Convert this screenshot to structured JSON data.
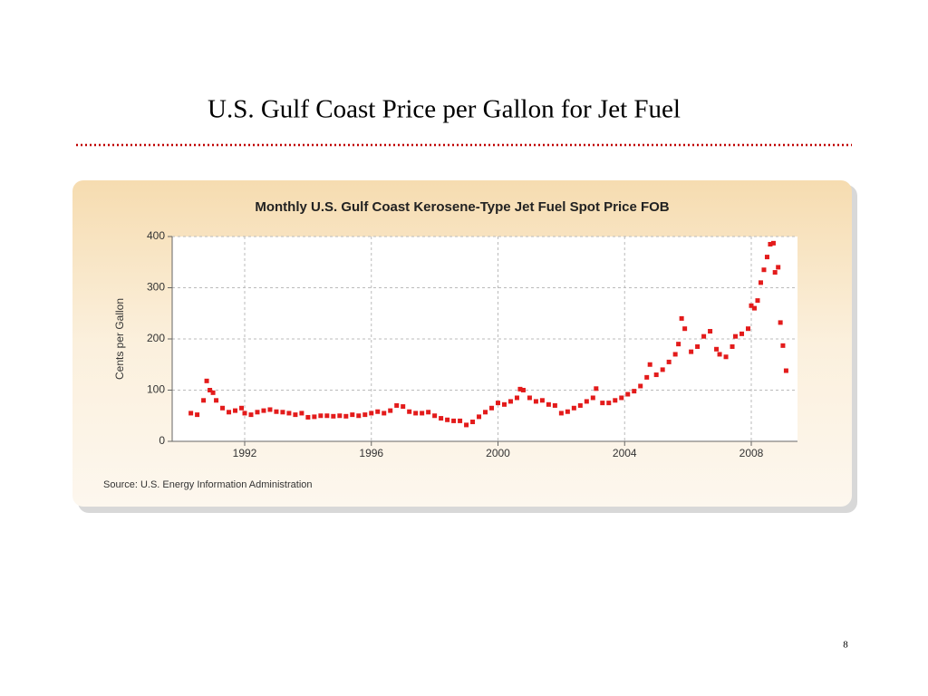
{
  "slide": {
    "title": "U.S. Gulf Coast Price per Gallon for Jet Fuel",
    "page_number": "8"
  },
  "chart_data": {
    "type": "scatter",
    "title": "Monthly U.S. Gulf Coast Kerosene-Type Jet Fuel Spot Price FOB",
    "ylabel": "Cents per Gallon",
    "source": "Source: U.S. Energy Information Administration",
    "color": "#e31b1b",
    "grid": true,
    "xlim": [
      1989.71,
      2009.46
    ],
    "ylim": [
      0,
      400
    ],
    "xticks": [
      1992,
      1996,
      2000,
      2004,
      2008
    ],
    "yticks": [
      0,
      100,
      200,
      300,
      400
    ],
    "x": [
      1990.3,
      1990.5,
      1990.7,
      1990.8,
      1990.9,
      1991.0,
      1991.1,
      1991.3,
      1991.5,
      1991.7,
      1991.9,
      1992.0,
      1992.2,
      1992.4,
      1992.6,
      1992.8,
      1993.0,
      1993.2,
      1993.4,
      1993.6,
      1993.8,
      1994.0,
      1994.2,
      1994.4,
      1994.6,
      1994.8,
      1995.0,
      1995.2,
      1995.4,
      1995.6,
      1995.8,
      1996.0,
      1996.2,
      1996.4,
      1996.6,
      1996.8,
      1997.0,
      1997.2,
      1997.4,
      1997.6,
      1997.8,
      1998.0,
      1998.2,
      1998.4,
      1998.6,
      1998.8,
      1999.0,
      1999.2,
      1999.4,
      1999.6,
      1999.8,
      2000.0,
      2000.2,
      2000.4,
      2000.6,
      2000.7,
      2000.8,
      2001.0,
      2001.2,
      2001.4,
      2001.6,
      2001.8,
      2002.0,
      2002.2,
      2002.4,
      2002.6,
      2002.8,
      2003.0,
      2003.1,
      2003.3,
      2003.5,
      2003.7,
      2003.9,
      2004.1,
      2004.3,
      2004.5,
      2004.7,
      2004.8,
      2005.0,
      2005.2,
      2005.4,
      2005.6,
      2005.7,
      2005.8,
      2005.9,
      2006.1,
      2006.3,
      2006.5,
      2006.7,
      2006.9,
      2007.0,
      2007.2,
      2007.4,
      2007.5,
      2007.7,
      2007.9,
      2008.0,
      2008.1,
      2008.2,
      2008.3,
      2008.4,
      2008.5,
      2008.6,
      2008.7,
      2008.75,
      2008.85,
      2008.92,
      2009.0,
      2009.1
    ],
    "values": [
      55,
      52,
      80,
      118,
      100,
      95,
      80,
      65,
      57,
      60,
      65,
      55,
      52,
      57,
      60,
      62,
      58,
      57,
      55,
      52,
      55,
      47,
      48,
      50,
      50,
      49,
      50,
      49,
      52,
      50,
      52,
      55,
      58,
      55,
      60,
      70,
      68,
      58,
      55,
      55,
      57,
      50,
      45,
      42,
      40,
      40,
      32,
      38,
      48,
      57,
      65,
      75,
      72,
      78,
      85,
      102,
      100,
      85,
      78,
      80,
      72,
      70,
      55,
      58,
      65,
      70,
      78,
      85,
      103,
      75,
      75,
      80,
      85,
      92,
      98,
      108,
      125,
      150,
      130,
      140,
      155,
      170,
      190,
      240,
      220,
      175,
      185,
      205,
      215,
      180,
      170,
      165,
      185,
      205,
      210,
      220,
      265,
      260,
      275,
      310,
      335,
      360,
      385,
      387,
      330,
      340,
      232,
      187,
      138
    ]
  }
}
